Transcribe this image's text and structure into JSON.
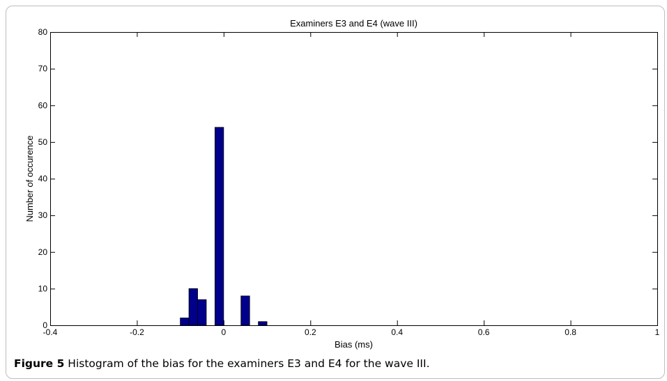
{
  "chart_data": {
    "type": "bar",
    "title": "Examiners E3 and E4 (wave III)",
    "xlabel": "Bias (ms)",
    "ylabel": "Number of occurence",
    "xlim": [
      -0.4,
      1
    ],
    "ylim": [
      0,
      80
    ],
    "xticks": [
      -0.4,
      -0.2,
      0,
      0.2,
      0.4,
      0.6,
      0.8,
      1
    ],
    "xtick_labels": [
      "-0.4",
      "-0.2",
      "0",
      "0.2",
      "0.4",
      "0.6",
      "0.8",
      "1"
    ],
    "yticks": [
      0,
      10,
      20,
      30,
      40,
      50,
      60,
      70,
      80
    ],
    "ytick_labels": [
      "0",
      "10",
      "20",
      "30",
      "40",
      "50",
      "60",
      "70",
      "80"
    ],
    "bin_width": 0.02,
    "bins": [
      {
        "x": -0.09,
        "count": 2
      },
      {
        "x": -0.07,
        "count": 10
      },
      {
        "x": -0.05,
        "count": 7
      },
      {
        "x": -0.01,
        "count": 54
      },
      {
        "x": 0.05,
        "count": 8
      },
      {
        "x": 0.09,
        "count": 1
      }
    ],
    "bar_color": "#00008b",
    "grid": false,
    "legend": "none"
  },
  "caption": {
    "label": "Figure 5",
    "text": " Histogram of the bias for the examiners E3 and E4 for the wave III."
  }
}
